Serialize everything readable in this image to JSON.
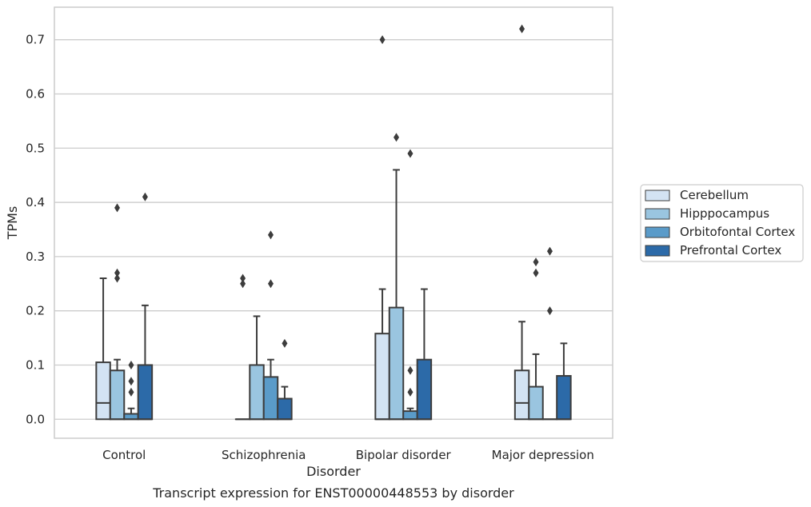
{
  "chart_data": {
    "type": "box",
    "title": "",
    "caption": "Transcript expression for ENST00000448553 by disorder",
    "xlabel": "Disorder",
    "ylabel": "TPMs",
    "ylim": [
      -0.035,
      0.76
    ],
    "yticks": [
      "0.0",
      "0.1",
      "0.2",
      "0.3",
      "0.4",
      "0.5",
      "0.6",
      "0.7"
    ],
    "grid": "horizontal",
    "legend_position": "right",
    "categories": [
      "Control",
      "Schizophrenia",
      "Bipolar disorder",
      "Major depression"
    ],
    "series": [
      {
        "name": "Cerebellum",
        "color": "#d3e3f3",
        "boxes": [
          {
            "q1": 0.0,
            "median": 0.03,
            "q3": 0.105,
            "whisker_low": 0.0,
            "whisker_high": 0.26,
            "outliers": []
          },
          {
            "q1": 0.0,
            "median": 0.0,
            "q3": 0.0,
            "whisker_low": 0.0,
            "whisker_high": 0.0,
            "outliers": [
              0.25,
              0.26
            ]
          },
          {
            "q1": 0.0,
            "median": 0.0,
            "q3": 0.158,
            "whisker_low": 0.0,
            "whisker_high": 0.24,
            "outliers": [
              0.7
            ]
          },
          {
            "q1": 0.0,
            "median": 0.03,
            "q3": 0.09,
            "whisker_low": 0.0,
            "whisker_high": 0.18,
            "outliers": [
              0.72
            ]
          }
        ]
      },
      {
        "name": "Hipppocampus",
        "color": "#9ac5e0",
        "boxes": [
          {
            "q1": 0.0,
            "median": 0.0,
            "q3": 0.09,
            "whisker_low": 0.0,
            "whisker_high": 0.11,
            "outliers": [
              0.26,
              0.27,
              0.39
            ]
          },
          {
            "q1": 0.0,
            "median": 0.0,
            "q3": 0.1,
            "whisker_low": 0.0,
            "whisker_high": 0.19,
            "outliers": []
          },
          {
            "q1": 0.0,
            "median": 0.0,
            "q3": 0.206,
            "whisker_low": 0.0,
            "whisker_high": 0.46,
            "outliers": [
              0.52
            ]
          },
          {
            "q1": 0.0,
            "median": 0.0,
            "q3": 0.06,
            "whisker_low": 0.0,
            "whisker_high": 0.12,
            "outliers": [
              0.27,
              0.29
            ]
          }
        ]
      },
      {
        "name": "Orbitofontal Cortex",
        "color": "#5a9bc9",
        "boxes": [
          {
            "q1": 0.0,
            "median": 0.0,
            "q3": 0.01,
            "whisker_low": 0.0,
            "whisker_high": 0.02,
            "outliers": [
              0.05,
              0.07,
              0.1
            ]
          },
          {
            "q1": 0.0,
            "median": 0.0,
            "q3": 0.078,
            "whisker_low": 0.0,
            "whisker_high": 0.11,
            "outliers": [
              0.25,
              0.34
            ]
          },
          {
            "q1": 0.0,
            "median": 0.0,
            "q3": 0.015,
            "whisker_low": 0.0,
            "whisker_high": 0.02,
            "outliers": [
              0.05,
              0.09,
              0.49
            ]
          },
          {
            "q1": 0.0,
            "median": 0.0,
            "q3": 0.0,
            "whisker_low": 0.0,
            "whisker_high": 0.0,
            "outliers": [
              0.2,
              0.31
            ]
          }
        ]
      },
      {
        "name": "Prefrontal Cortex",
        "color": "#2c6aa8",
        "boxes": [
          {
            "q1": 0.0,
            "median": 0.0,
            "q3": 0.1,
            "whisker_low": 0.0,
            "whisker_high": 0.21,
            "outliers": [
              0.41
            ]
          },
          {
            "q1": 0.0,
            "median": 0.0,
            "q3": 0.038,
            "whisker_low": 0.0,
            "whisker_high": 0.06,
            "outliers": [
              0.14
            ]
          },
          {
            "q1": 0.0,
            "median": 0.0,
            "q3": 0.11,
            "whisker_low": 0.0,
            "whisker_high": 0.24,
            "outliers": []
          },
          {
            "q1": 0.0,
            "median": 0.0,
            "q3": 0.08,
            "whisker_low": 0.0,
            "whisker_high": 0.14,
            "outliers": []
          }
        ]
      }
    ]
  }
}
